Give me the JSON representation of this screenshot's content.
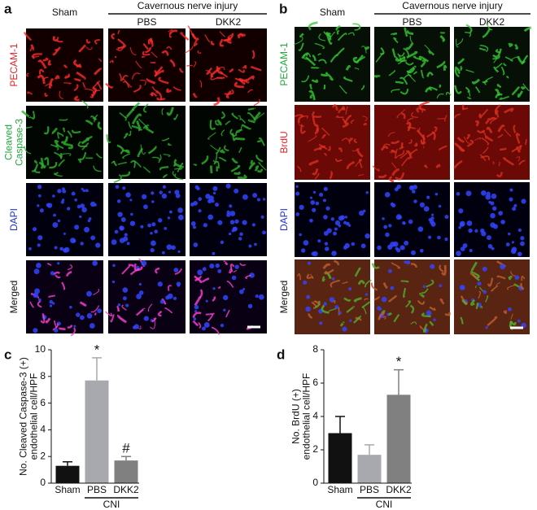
{
  "panel_a": {
    "label": "a",
    "group_header": "Cavernous nerve injury",
    "columns": [
      "Sham",
      "PBS",
      "DKK2"
    ],
    "rows": [
      {
        "label": [
          "PECAM-1"
        ],
        "color": "#e8232b"
      },
      {
        "label": [
          "Cleaved",
          "Caspase-3"
        ],
        "color": "#1fa83a"
      },
      {
        "label": [
          "DAPI"
        ],
        "color": "#2233cc"
      },
      {
        "label": [
          "Merged"
        ],
        "color": "#111111"
      }
    ]
  },
  "panel_b": {
    "label": "b",
    "group_header": "Cavernous nerve injury",
    "columns": [
      "Sham",
      "PBS",
      "DKK2"
    ],
    "rows": [
      {
        "label": [
          "PECAM-1"
        ],
        "color": "#1fa83a"
      },
      {
        "label": [
          "BrdU"
        ],
        "color": "#e8232b"
      },
      {
        "label": [
          "DAPI"
        ],
        "color": "#2233cc"
      },
      {
        "label": [
          "Merged"
        ],
        "color": "#111111"
      }
    ]
  },
  "chart_data": [
    {
      "type": "bar",
      "panel": "c",
      "ylabel": [
        "No. Cleaved Caspase-3 (+)",
        "endothelial cell/HPF"
      ],
      "categories": [
        "Sham",
        "PBS",
        "DKK2"
      ],
      "values": [
        1.3,
        7.7,
        1.7
      ],
      "errors": [
        0.3,
        1.7,
        0.3
      ],
      "colors": [
        "#111111",
        "#a8a9ae",
        "#808080"
      ],
      "ylim": [
        0,
        10
      ],
      "yticks": [
        0,
        2,
        4,
        6,
        8,
        10
      ],
      "annotations": [
        {
          "category": "PBS",
          "text": "*"
        },
        {
          "category": "DKK2",
          "text": "#"
        }
      ],
      "group": {
        "label": "CNI",
        "categories": [
          "PBS",
          "DKK2"
        ]
      }
    },
    {
      "type": "bar",
      "panel": "d",
      "ylabel": [
        "No. BrdU (+)",
        "endothelial cell/HPF"
      ],
      "categories": [
        "Sham",
        "PBS",
        "DKK2"
      ],
      "values": [
        3.0,
        1.7,
        5.3
      ],
      "errors": [
        1.0,
        0.6,
        1.5
      ],
      "colors": [
        "#111111",
        "#a8a9ae",
        "#808080"
      ],
      "ylim": [
        0,
        8
      ],
      "yticks": [
        0,
        2,
        4,
        6,
        8
      ],
      "annotations": [
        {
          "category": "DKK2",
          "text": "*"
        }
      ],
      "group": {
        "label": "CNI",
        "categories": [
          "PBS",
          "DKK2"
        ]
      }
    }
  ]
}
